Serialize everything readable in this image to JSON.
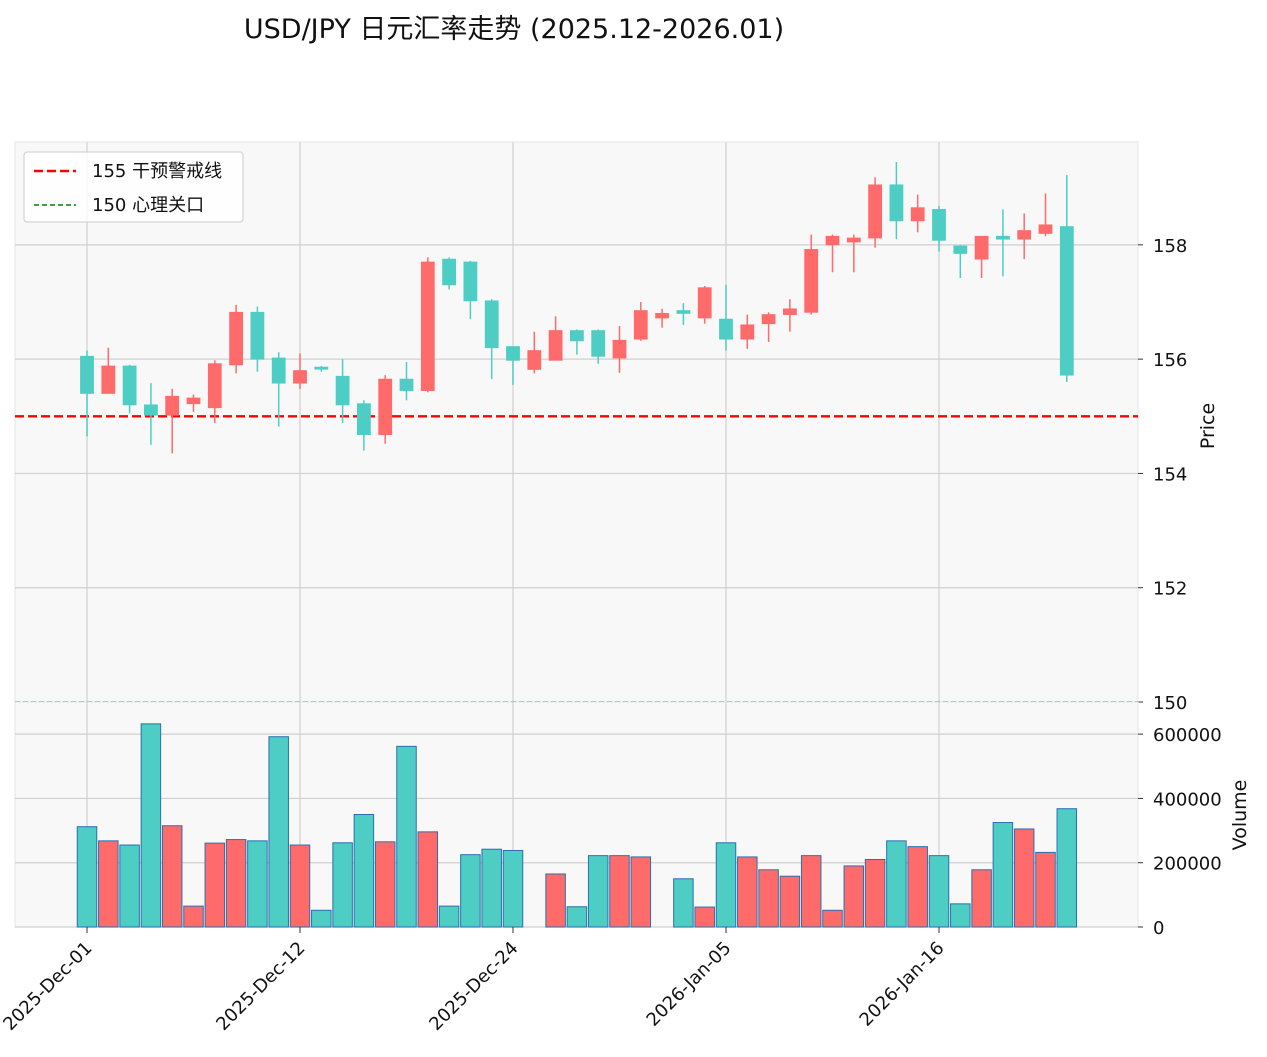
{
  "chart_data": {
    "type": "candlestick",
    "title": "USD/JPY 日元汇率走势 (2025.12-2026.01)",
    "ylabel_price": "Price",
    "ylabel_volume": "Volume",
    "price_ylim": [
      150,
      159.8
    ],
    "price_ticks": [
      "150",
      "152",
      "154",
      "156",
      "158"
    ],
    "volume_ylim": [
      0,
      700000
    ],
    "volume_ticks": [
      "0",
      "200000",
      "400000",
      "600000"
    ],
    "x_tick_labels": [
      {
        "index": 0,
        "label": "2025-Dec-01"
      },
      {
        "index": 10,
        "label": "2025-Dec-12"
      },
      {
        "index": 20,
        "label": "2025-Dec-24"
      },
      {
        "index": 30,
        "label": "2026-Jan-05"
      },
      {
        "index": 40,
        "label": "2026-Jan-16"
      }
    ],
    "up_color": "#ff6b6b",
    "down_color": "#4ecdc4",
    "reference_lines": [
      {
        "value": 155,
        "label": "155 干预警戒线",
        "color": "#ff0000",
        "style": "dashed-thick"
      },
      {
        "value": 150,
        "label": "150 心理关口",
        "color": "#008000",
        "style": "dashed-thin"
      }
    ],
    "candles": [
      {
        "open": 156.05,
        "high": 156.15,
        "low": 154.65,
        "close": 155.4,
        "volume": 312000
      },
      {
        "open": 155.4,
        "high": 156.2,
        "low": 155.4,
        "close": 155.88,
        "volume": 268000
      },
      {
        "open": 155.88,
        "high": 155.9,
        "low": 155.05,
        "close": 155.2,
        "volume": 255000
      },
      {
        "open": 155.2,
        "high": 155.58,
        "low": 154.5,
        "close": 155.02,
        "volume": 632000
      },
      {
        "open": 155.02,
        "high": 155.48,
        "low": 154.35,
        "close": 155.35,
        "volume": 315000
      },
      {
        "open": 155.22,
        "high": 155.38,
        "low": 155.08,
        "close": 155.32,
        "volume": 65000
      },
      {
        "open": 155.15,
        "high": 155.98,
        "low": 154.88,
        "close": 155.92,
        "volume": 261000
      },
      {
        "open": 155.9,
        "high": 156.95,
        "low": 155.75,
        "close": 156.82,
        "volume": 272000
      },
      {
        "open": 156.82,
        "high": 156.92,
        "low": 155.78,
        "close": 156.0,
        "volume": 268000
      },
      {
        "open": 156.02,
        "high": 156.12,
        "low": 154.82,
        "close": 155.58,
        "volume": 592000
      },
      {
        "open": 155.58,
        "high": 156.1,
        "low": 155.48,
        "close": 155.8,
        "volume": 255000
      },
      {
        "open": 155.86,
        "high": 155.88,
        "low": 155.78,
        "close": 155.84,
        "volume": 52000
      },
      {
        "open": 155.7,
        "high": 156.0,
        "low": 154.88,
        "close": 155.2,
        "volume": 262000
      },
      {
        "open": 155.22,
        "high": 155.28,
        "low": 154.4,
        "close": 154.68,
        "volume": 350000
      },
      {
        "open": 154.68,
        "high": 155.72,
        "low": 154.52,
        "close": 155.65,
        "volume": 265000
      },
      {
        "open": 155.65,
        "high": 155.95,
        "low": 155.28,
        "close": 155.45,
        "volume": 562000
      },
      {
        "open": 155.45,
        "high": 157.78,
        "low": 155.42,
        "close": 157.7,
        "volume": 296000
      },
      {
        "open": 157.75,
        "high": 157.78,
        "low": 157.22,
        "close": 157.3,
        "volume": 65000
      },
      {
        "open": 157.7,
        "high": 157.72,
        "low": 156.7,
        "close": 157.02,
        "volume": 225000
      },
      {
        "open": 157.02,
        "high": 157.05,
        "low": 155.65,
        "close": 156.2,
        "volume": 242000
      },
      {
        "open": 156.22,
        "high": 156.22,
        "low": 155.55,
        "close": 155.98,
        "volume": 238000
      },
      {
        "open": 155.82,
        "high": 156.48,
        "low": 155.75,
        "close": 156.15,
        "volume": null
      },
      {
        "open": 155.98,
        "high": 156.75,
        "low": 155.98,
        "close": 156.5,
        "volume": 165000
      },
      {
        "open": 156.5,
        "high": 156.52,
        "low": 156.08,
        "close": 156.32,
        "volume": 63000
      },
      {
        "open": 156.5,
        "high": 156.52,
        "low": 155.92,
        "close": 156.05,
        "volume": 222000
      },
      {
        "open": 156.02,
        "high": 156.58,
        "low": 155.76,
        "close": 156.33,
        "volume": 222000
      },
      {
        "open": 156.35,
        "high": 157.0,
        "low": 156.32,
        "close": 156.85,
        "volume": 218000
      },
      {
        "open": 156.72,
        "high": 156.88,
        "low": 156.55,
        "close": 156.8,
        "volume": null
      },
      {
        "open": 156.85,
        "high": 156.98,
        "low": 156.6,
        "close": 156.8,
        "volume": 150000
      },
      {
        "open": 156.72,
        "high": 157.28,
        "low": 156.62,
        "close": 157.25,
        "volume": 62000
      },
      {
        "open": 156.7,
        "high": 157.3,
        "low": 156.15,
        "close": 156.35,
        "volume": 262000
      },
      {
        "open": 156.35,
        "high": 156.78,
        "low": 156.18,
        "close": 156.6,
        "volume": 218000
      },
      {
        "open": 156.62,
        "high": 156.82,
        "low": 156.3,
        "close": 156.78,
        "volume": 178000
      },
      {
        "open": 156.78,
        "high": 157.05,
        "low": 156.48,
        "close": 156.88,
        "volume": 158000
      },
      {
        "open": 156.82,
        "high": 158.18,
        "low": 156.78,
        "close": 157.92,
        "volume": 222000
      },
      {
        "open": 158.0,
        "high": 158.18,
        "low": 157.52,
        "close": 158.15,
        "volume": 52000
      },
      {
        "open": 158.05,
        "high": 158.18,
        "low": 157.52,
        "close": 158.12,
        "volume": 190000
      },
      {
        "open": 158.12,
        "high": 159.18,
        "low": 157.95,
        "close": 159.05,
        "volume": 210000
      },
      {
        "open": 159.05,
        "high": 159.45,
        "low": 158.1,
        "close": 158.42,
        "volume": 268000
      },
      {
        "open": 158.42,
        "high": 158.88,
        "low": 158.22,
        "close": 158.65,
        "volume": 250000
      },
      {
        "open": 158.62,
        "high": 158.68,
        "low": 157.88,
        "close": 158.08,
        "volume": 222000
      },
      {
        "open": 157.98,
        "high": 158.0,
        "low": 157.42,
        "close": 157.85,
        "volume": 72000
      },
      {
        "open": 157.75,
        "high": 158.15,
        "low": 157.42,
        "close": 158.15,
        "volume": 178000
      },
      {
        "open": 158.15,
        "high": 158.62,
        "low": 157.45,
        "close": 158.1,
        "volume": 325000
      },
      {
        "open": 158.1,
        "high": 158.55,
        "low": 157.75,
        "close": 158.25,
        "volume": 305000
      },
      {
        "open": 158.2,
        "high": 158.9,
        "low": 158.15,
        "close": 158.35,
        "volume": 232000
      },
      {
        "open": 158.32,
        "high": 159.22,
        "low": 155.6,
        "close": 155.72,
        "volume": 368000
      }
    ]
  }
}
